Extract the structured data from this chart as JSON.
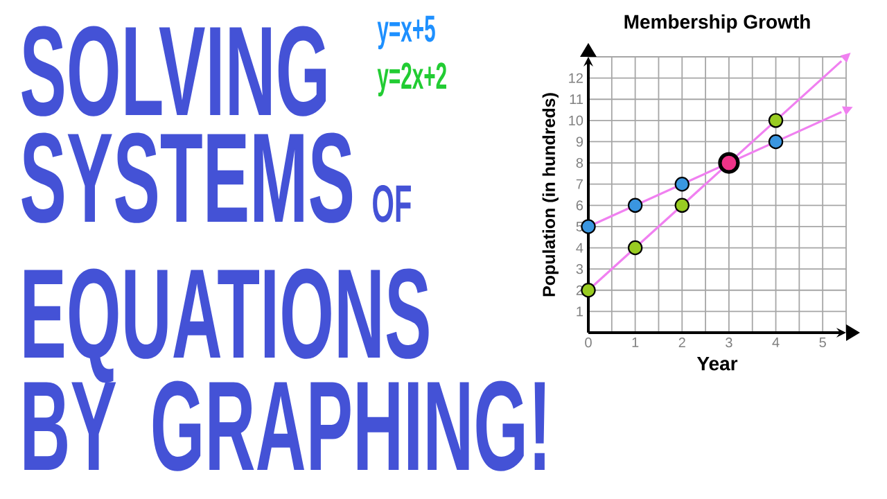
{
  "chart_data": {
    "type": "scatter",
    "title": "Membership Growth",
    "xlabel": "Year",
    "ylabel": "Population (in hundreds)",
    "annotations": [
      "SOLVING",
      "SYSTEMS",
      "OF",
      "EQUATIONS",
      "BY GRAPHING!",
      "y=x+5",
      "y=2x+2"
    ],
    "series": [
      {
        "type": "line",
        "color": "#f080f0",
        "x": [
          0,
          5.4
        ],
        "values": [
          5,
          10.4
        ],
        "marker": "none"
      },
      {
        "type": "line",
        "color": "#f080f0",
        "x": [
          0,
          5.4
        ],
        "values": [
          2,
          12.8
        ],
        "marker": "none"
      },
      {
        "type": "scatter",
        "color": "#3a96e0",
        "x": [
          0,
          1,
          2,
          4
        ],
        "values": [
          5,
          6,
          7,
          9
        ]
      },
      {
        "type": "scatter",
        "color": "#99cc22",
        "x": [
          0,
          1,
          2,
          4
        ],
        "values": [
          2,
          4,
          6,
          10
        ]
      },
      {
        "type": "scatter",
        "color": "#ee3388",
        "x": [
          3
        ],
        "values": [
          8
        ]
      }
    ],
    "xlim": [
      0,
      5.5
    ],
    "ylim": [
      0,
      13
    ],
    "xticks": [
      0,
      1,
      2,
      3,
      4,
      5
    ],
    "yticks": [
      1,
      2,
      3,
      4,
      5,
      6,
      7,
      8,
      9,
      10,
      11,
      12
    ],
    "grid": true,
    "marker": "circle"
  }
}
